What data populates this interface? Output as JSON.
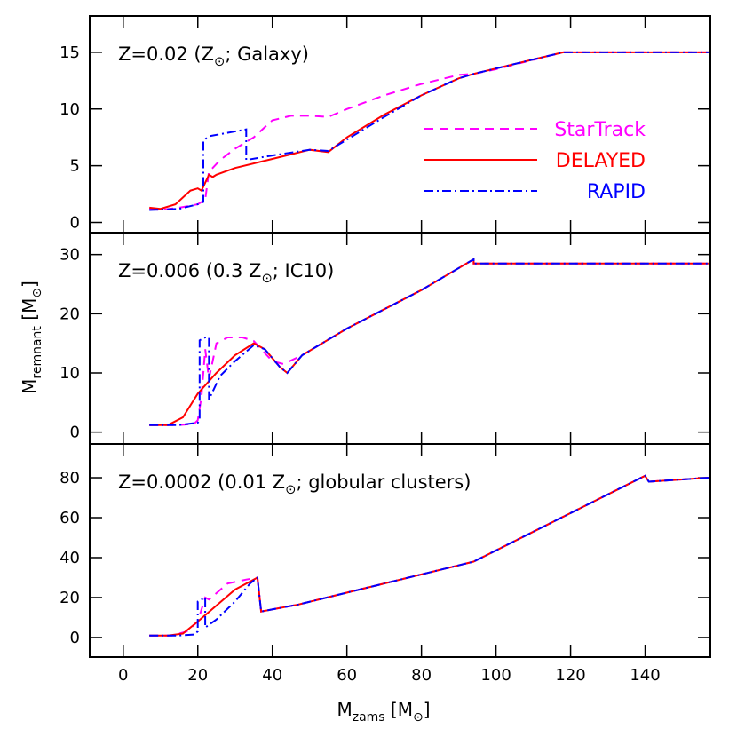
{
  "chart_data": [
    {
      "type": "line",
      "annotation": [
        "Z=0.02 (Z",
        "⊙",
        "; Galaxy)"
      ],
      "xlim": [
        -9,
        157.5
      ],
      "xticks": [
        0,
        20,
        40,
        60,
        80,
        100,
        120,
        140
      ],
      "ylim": [
        -0.9,
        18.2
      ],
      "yticks": [
        0,
        5,
        10,
        15
      ],
      "legend": "center right",
      "series": [
        {
          "name": "StarTrack",
          "color": "#ff00ff",
          "style": "dashed",
          "x": [
            7,
            10,
            15,
            20,
            22,
            23,
            24,
            26,
            30,
            35,
            40,
            45,
            50,
            55,
            60,
            70,
            80,
            90,
            94,
            100,
            118,
            157
          ],
          "values": [
            1.2,
            1.1,
            1.3,
            1.6,
            2.0,
            4.5,
            4.8,
            5.5,
            6.5,
            7.5,
            9.0,
            9.4,
            9.4,
            9.3,
            10,
            11.2,
            12.2,
            13.0,
            13.1,
            13.5,
            15,
            15
          ]
        },
        {
          "name": "DELAYED",
          "color": "#ff0000",
          "style": "solid",
          "x": [
            7,
            10,
            14,
            18,
            20,
            21,
            22,
            23,
            24,
            25,
            30,
            40,
            50,
            55,
            60,
            70,
            80,
            90,
            94,
            118,
            157
          ],
          "values": [
            1.3,
            1.2,
            1.6,
            2.8,
            3.0,
            2.8,
            3.5,
            4.2,
            4.0,
            4.2,
            4.8,
            5.6,
            6.4,
            6.2,
            7.5,
            9.5,
            11.2,
            12.7,
            13.1,
            15,
            15
          ]
        },
        {
          "name": "RAPID",
          "color": "#0000ff",
          "style": "dashdot",
          "x": [
            7,
            15,
            20,
            21.5,
            21.5,
            23,
            33,
            33,
            40,
            50,
            55,
            60,
            70,
            80,
            90,
            94,
            118,
            157
          ],
          "values": [
            1.1,
            1.2,
            1.6,
            1.8,
            7.2,
            7.6,
            8.2,
            5.5,
            5.9,
            6.4,
            6.3,
            7.3,
            9.3,
            11.2,
            12.7,
            13.1,
            15,
            15
          ]
        }
      ]
    },
    {
      "type": "line",
      "annotation": [
        "Z=0.006 (0.3 Z",
        "⊙",
        "; IC10)"
      ],
      "ylabel": [
        "M",
        "remnant",
        " [M",
        "⊙",
        "]"
      ],
      "xlim": [
        -9,
        157.5
      ],
      "xticks": [
        0,
        20,
        40,
        60,
        80,
        100,
        120,
        140
      ],
      "ylim": [
        -2,
        33.7
      ],
      "yticks": [
        0,
        10,
        20,
        30
      ],
      "series": [
        {
          "color": "#ff00ff",
          "style": "dashed",
          "x": [
            7,
            15,
            19,
            20,
            21,
            22,
            23,
            25,
            28,
            32,
            35,
            40,
            43,
            48,
            60,
            80,
            94,
            94,
            157
          ],
          "values": [
            1.2,
            1.2,
            1.4,
            2,
            6,
            14,
            9,
            15,
            16,
            16,
            15.4,
            12,
            11.5,
            13,
            17.5,
            24,
            29.2,
            28.5,
            28.5
          ]
        },
        {
          "color": "#ff0000",
          "style": "solid",
          "x": [
            7,
            12,
            16,
            20,
            25,
            30,
            35,
            38,
            42,
            44,
            48,
            60,
            80,
            94,
            94,
            157
          ],
          "values": [
            1.2,
            1.2,
            2.5,
            6.5,
            10,
            13,
            15,
            14,
            11,
            10,
            13,
            17.5,
            24,
            29.2,
            28.5,
            28.5
          ]
        },
        {
          "color": "#0000ff",
          "style": "dashdot",
          "x": [
            7,
            15,
            20,
            20.5,
            20.5,
            22,
            23,
            23,
            26,
            30,
            35,
            38,
            42,
            44,
            48,
            60,
            80,
            94,
            94,
            157
          ],
          "values": [
            1.2,
            1.2,
            1.6,
            2,
            15.5,
            16,
            16,
            5.5,
            9.5,
            12,
            14.7,
            14,
            11,
            10,
            13,
            17.5,
            24,
            29.2,
            28.5,
            28.5
          ]
        }
      ]
    },
    {
      "type": "line",
      "annotation": [
        "Z=0.0002 (0.01 Z",
        "⊙",
        "; globular clusters)"
      ],
      "xlabel": [
        "M",
        "zams",
        " [M",
        "⊙",
        "]"
      ],
      "xlim": [
        -9,
        157.5
      ],
      "xticks": [
        0,
        20,
        40,
        60,
        80,
        100,
        120,
        140
      ],
      "ylim": [
        -9.8,
        96.9
      ],
      "yticks": [
        0,
        20,
        40,
        60,
        80
      ],
      "series": [
        {
          "color": "#ff00ff",
          "style": "dashed",
          "x": [
            7,
            13,
            17,
            20,
            22,
            23,
            28,
            33,
            36,
            37,
            47,
            94,
            140,
            141,
            157
          ],
          "values": [
            1,
            1,
            3,
            8,
            20,
            19,
            27,
            29,
            30,
            13,
            16.5,
            38,
            81,
            78,
            80
          ]
        },
        {
          "color": "#ff0000",
          "style": "solid",
          "x": [
            7,
            12,
            16,
            20,
            25,
            30,
            34,
            36,
            37,
            47,
            94,
            140,
            141,
            157
          ],
          "values": [
            1,
            1,
            2,
            8,
            16,
            24,
            28,
            30,
            13,
            16.5,
            38,
            81,
            78,
            80
          ]
        },
        {
          "color": "#0000ff",
          "style": "dashdot",
          "x": [
            7,
            15,
            19,
            20,
            20,
            22,
            22,
            25,
            30,
            34,
            36,
            37,
            47,
            94,
            140,
            141,
            157
          ],
          "values": [
            1,
            1,
            1.5,
            3,
            18,
            20,
            5,
            9,
            18,
            27,
            30,
            13,
            16.5,
            38,
            81,
            78,
            80
          ]
        }
      ]
    }
  ]
}
